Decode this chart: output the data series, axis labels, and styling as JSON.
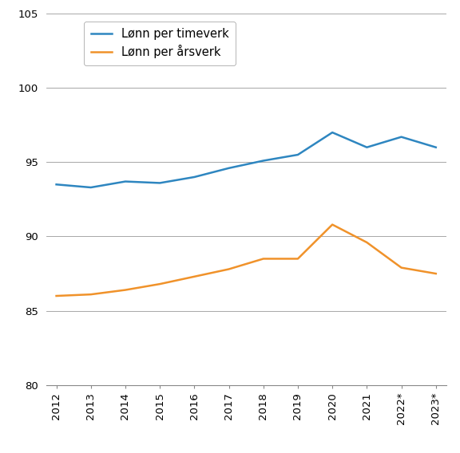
{
  "years": [
    2012,
    2013,
    2014,
    2015,
    2016,
    2017,
    2018,
    2019,
    2020,
    2021,
    2022,
    2023
  ],
  "x_labels": [
    "2012",
    "2013",
    "2014",
    "2015",
    "2016",
    "2017",
    "2018",
    "2019",
    "2020",
    "2021",
    "2022*",
    "2023*"
  ],
  "timeverk": [
    93.5,
    93.3,
    93.7,
    93.6,
    94.0,
    94.6,
    95.1,
    95.5,
    97.0,
    96.0,
    96.7,
    96.0
  ],
  "arsverk": [
    86.0,
    86.1,
    86.4,
    86.8,
    87.3,
    87.8,
    88.5,
    88.5,
    90.8,
    89.6,
    87.9,
    87.5
  ],
  "timeverk_color": "#2E86C0",
  "arsverk_color": "#F0922A",
  "ylim": [
    80,
    105
  ],
  "yticks": [
    80,
    85,
    90,
    95,
    100,
    105
  ],
  "legend_timeverk": "Lønn per timeverk",
  "legend_arsverk": "Lønn per årsverk",
  "line_width": 1.8,
  "background_color": "#ffffff",
  "grid_color": "#999999",
  "tick_label_fontsize": 9.5,
  "legend_fontsize": 10.5
}
